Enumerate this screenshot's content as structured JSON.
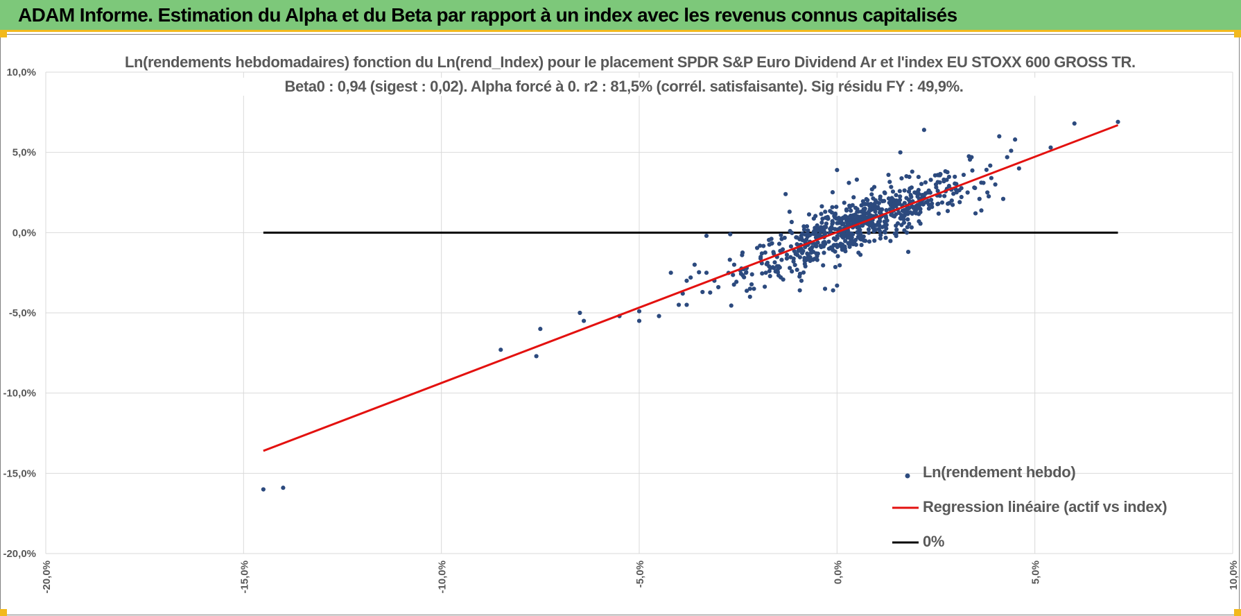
{
  "header": {
    "title": "ADAM Informe. Estimation du Alpha et du Beta par rapport à un index avec les revenus connus capitalisés"
  },
  "colors": {
    "header_bg": "#7dc87a",
    "header_border": "#f2b91d",
    "points": "#2c4a7e",
    "regression": "#e3110f",
    "zero_line": "#000000",
    "grid": "#d9d9d9",
    "axis_text": "#595959"
  },
  "chart_data": {
    "type": "scatter",
    "title": "Ln(rendements hebdomadaires) fonction du Ln(rend_Index) pour le placement SPDR S&P Euro Dividend Ar et l'index EU STOXX 600 GROSS TR.",
    "subtitle": "Beta0 : 0,94 (sigest : 0,02).  Alpha forcé à 0. r2 : 81,5% (corrél. satisfaisante). Sig résidu FY : 49,9%.",
    "xlim": [
      -0.2,
      0.1
    ],
    "ylim": [
      -0.2,
      0.1
    ],
    "x_ticks": [
      "-20,0%",
      "-15,0%",
      "-10,0%",
      "-5,0%",
      "0,0%",
      "5,0%",
      "10,0%"
    ],
    "y_ticks": [
      "10,0%",
      "5,0%",
      "0,0%",
      "-5,0%",
      "-10,0%",
      "-15,0%",
      "-20,0%"
    ],
    "x_tick_values": [
      -0.2,
      -0.15,
      -0.1,
      -0.05,
      0.0,
      0.05,
      0.1
    ],
    "y_tick_values": [
      0.1,
      0.05,
      0.0,
      -0.05,
      -0.1,
      -0.15,
      -0.2
    ],
    "grid": true,
    "legend_position": "bottom-right",
    "series": [
      {
        "name": "Ln(rendement hebdo)",
        "kind": "points",
        "points": [
          [
            -0.145,
            -0.16
          ],
          [
            -0.14,
            -0.159
          ],
          [
            -0.085,
            -0.073
          ],
          [
            -0.076,
            -0.077
          ],
          [
            -0.075,
            -0.06
          ],
          [
            -0.065,
            -0.05
          ],
          [
            -0.064,
            -0.055
          ],
          [
            -0.055,
            -0.052
          ],
          [
            -0.05,
            -0.049
          ],
          [
            -0.05,
            -0.055
          ],
          [
            -0.045,
            -0.052
          ],
          [
            -0.042,
            -0.025
          ],
          [
            -0.04,
            -0.045
          ],
          [
            -0.039,
            -0.038
          ],
          [
            -0.038,
            -0.03
          ],
          [
            -0.038,
            -0.045
          ],
          [
            -0.037,
            -0.028
          ],
          [
            -0.036,
            -0.02
          ],
          [
            -0.034,
            -0.037
          ],
          [
            -0.033,
            -0.002
          ],
          [
            -0.033,
            -0.025
          ],
          [
            -0.031,
            -0.03
          ],
          [
            -0.03,
            -0.034
          ],
          [
            -0.027,
            -0.001
          ],
          [
            -0.026,
            -0.02
          ],
          [
            -0.024,
            -0.014
          ],
          [
            -0.023,
            -0.025
          ],
          [
            -0.022,
            -0.04
          ],
          [
            -0.022,
            -0.035
          ],
          [
            -0.021,
            -0.035
          ],
          [
            -0.019,
            -0.013
          ],
          [
            -0.018,
            -0.025
          ],
          [
            -0.016,
            -0.022
          ],
          [
            -0.015,
            -0.023
          ],
          [
            -0.014,
            -0.017
          ],
          [
            -0.013,
            0.024
          ],
          [
            -0.012,
            0.013
          ],
          [
            -0.011,
            -0.018
          ],
          [
            -0.01,
            -0.014
          ],
          [
            -0.009,
            -0.03
          ],
          [
            -0.008,
            -0.021
          ],
          [
            -0.007,
            -0.015
          ],
          [
            -0.006,
            -0.012
          ],
          [
            -0.005,
            -0.017
          ],
          [
            -0.004,
            -0.009
          ],
          [
            -0.003,
            0.013
          ],
          [
            -0.003,
            -0.007
          ],
          [
            -0.002,
            -0.01
          ],
          [
            -0.001,
            -0.036
          ],
          [
            0.0,
            0.039
          ],
          [
            0.0,
            -0.033
          ],
          [
            0.001,
            0.007
          ],
          [
            0.002,
            -0.01
          ],
          [
            0.003,
            0.005
          ],
          [
            0.003,
            0.031
          ],
          [
            0.004,
            -0.001
          ],
          [
            0.005,
            0.033
          ],
          [
            0.006,
            0.01
          ],
          [
            0.007,
            0.015
          ],
          [
            0.008,
            0.002
          ],
          [
            0.009,
            0.008
          ],
          [
            0.01,
            0.019
          ],
          [
            0.011,
            0.013
          ],
          [
            0.012,
            0.025
          ],
          [
            0.013,
            0.036
          ],
          [
            0.014,
            0.016
          ],
          [
            0.015,
            0.02
          ],
          [
            0.016,
            0.05
          ],
          [
            0.016,
            0.009
          ],
          [
            0.017,
            0.014
          ],
          [
            0.018,
            -0.012
          ],
          [
            0.019,
            0.038
          ],
          [
            0.02,
            0.012
          ],
          [
            0.021,
            0.019
          ],
          [
            0.022,
            0.064
          ],
          [
            0.023,
            0.025
          ],
          [
            0.024,
            0.016
          ],
          [
            0.025,
            0.03
          ],
          [
            0.026,
            0.023
          ],
          [
            0.027,
            0.033
          ],
          [
            0.028,
            0.018
          ],
          [
            0.029,
            0.02
          ],
          [
            0.03,
            0.027
          ],
          [
            0.031,
            0.019
          ],
          [
            0.032,
            0.036
          ],
          [
            0.033,
            0.025
          ],
          [
            0.034,
            0.047
          ],
          [
            0.035,
            0.012
          ],
          [
            0.036,
            0.021
          ],
          [
            0.037,
            0.031
          ],
          [
            0.038,
            0.025
          ],
          [
            0.039,
            0.034
          ],
          [
            0.04,
            0.03
          ],
          [
            0.041,
            0.06
          ],
          [
            0.042,
            0.021
          ],
          [
            0.043,
            0.047
          ],
          [
            0.044,
            0.051
          ],
          [
            0.045,
            0.058
          ],
          [
            0.046,
            0.04
          ],
          [
            0.054,
            0.053
          ],
          [
            0.06,
            0.068
          ],
          [
            0.071,
            0.069
          ]
        ],
        "cluster": {
          "center": [
            0.005,
            0.005
          ],
          "count": 650,
          "beta": 0.94,
          "x_spread": 0.014,
          "y_residual_spread": 0.008
        }
      },
      {
        "name": "Regression linéaire (actif vs index)",
        "kind": "line",
        "x": [
          -0.145,
          0.071
        ],
        "y": [
          -0.136,
          0.067
        ]
      },
      {
        "name": "0%",
        "kind": "line",
        "x": [
          -0.145,
          0.071
        ],
        "y": [
          0.0,
          0.0
        ]
      }
    ]
  }
}
